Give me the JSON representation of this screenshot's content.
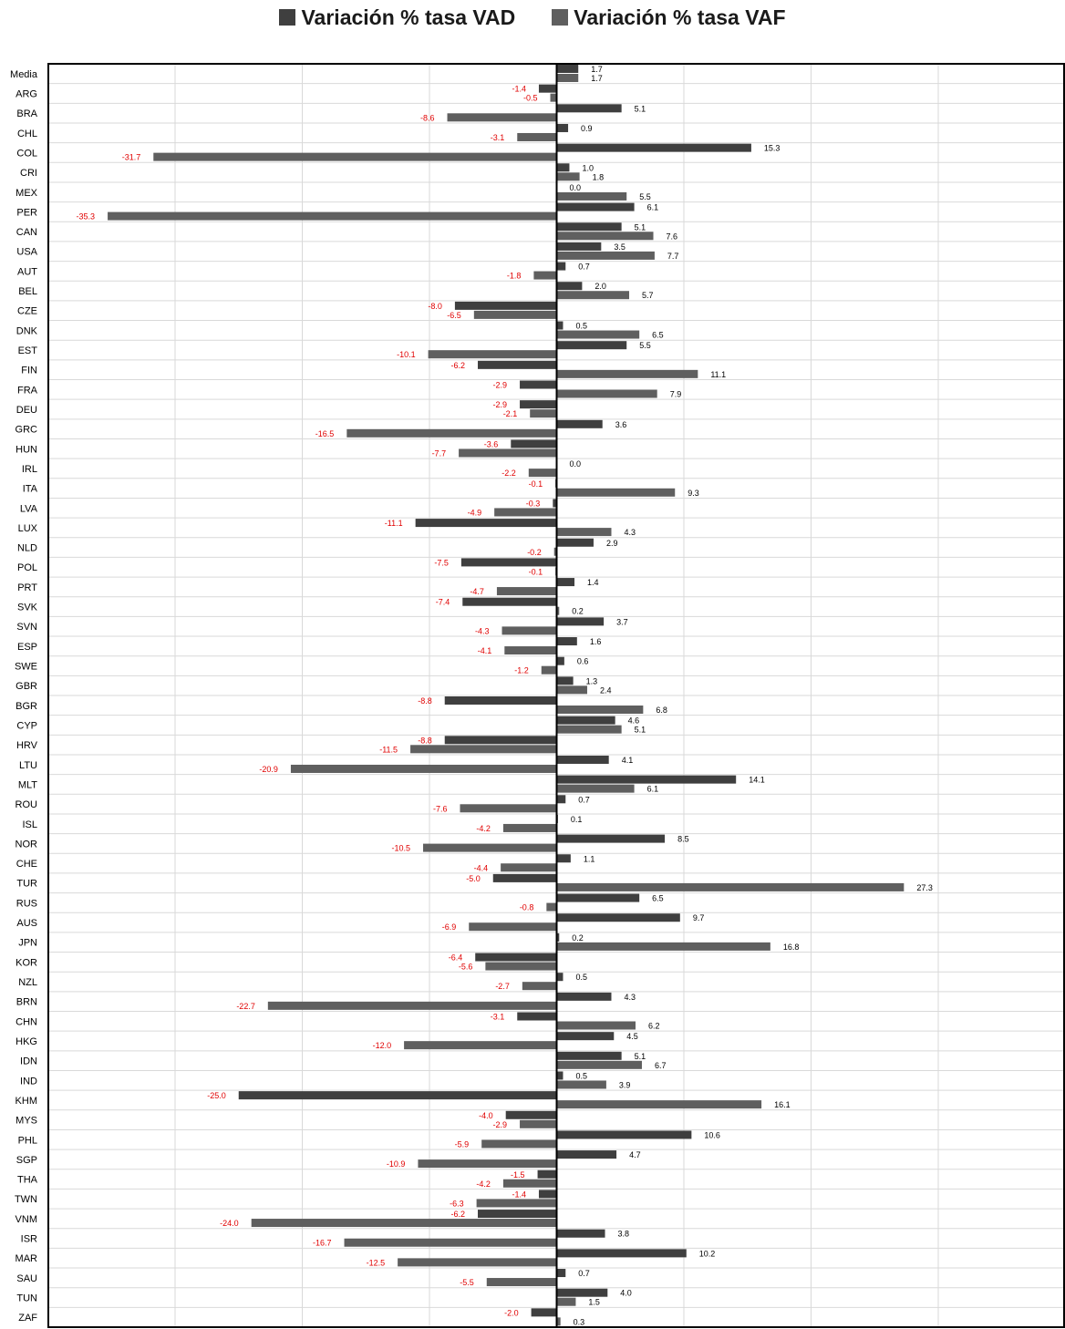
{
  "chart_data": {
    "type": "bar",
    "orientation": "horizontal",
    "legend_position": "top-center",
    "grid": true,
    "xlim": [
      -40,
      40
    ],
    "colors": {
      "VAD": "#3f3f3f",
      "VAF": "#5f5f5f",
      "negative_label": "#e00000",
      "positive_label": "#000000"
    },
    "categories": [
      "Media",
      "ARG",
      "BRA",
      "CHL",
      "COL",
      "CRI",
      "MEX",
      "PER",
      "CAN",
      "USA",
      "AUT",
      "BEL",
      "CZE",
      "DNK",
      "EST",
      "FIN",
      "FRA",
      "DEU",
      "GRC",
      "HUN",
      "IRL",
      "ITA",
      "LVA",
      "LUX",
      "NLD",
      "POL",
      "PRT",
      "SVK",
      "SVN",
      "ESP",
      "SWE",
      "GBR",
      "BGR",
      "CYP",
      "HRV",
      "LTU",
      "MLT",
      "ROU",
      "ISL",
      "NOR",
      "CHE",
      "TUR",
      "RUS",
      "AUS",
      "JPN",
      "KOR",
      "NZL",
      "BRN",
      "CHN",
      "HKG",
      "IDN",
      "IND",
      "KHM",
      "MYS",
      "PHL",
      "SGP",
      "THA",
      "TWN",
      "VNM",
      "ISR",
      "MAR",
      "SAU",
      "TUN",
      "ZAF"
    ],
    "series": [
      {
        "name": "Variación % tasa VAD",
        "values": [
          1.7,
          -1.4,
          5.1,
          0.9,
          15.3,
          1.0,
          0.0,
          6.1,
          5.1,
          3.5,
          0.7,
          2.0,
          -8.0,
          0.5,
          5.5,
          -6.2,
          -2.9,
          -2.9,
          3.6,
          -3.6,
          0.0,
          -0.1,
          -0.3,
          -11.1,
          2.9,
          -7.5,
          1.4,
          -7.4,
          3.7,
          1.6,
          0.6,
          1.3,
          -8.8,
          4.6,
          -8.8,
          4.1,
          14.1,
          0.7,
          0.1,
          8.5,
          1.1,
          -5.0,
          6.5,
          9.7,
          0.2,
          -6.4,
          0.5,
          4.3,
          -3.1,
          4.5,
          5.1,
          0.5,
          -25.0,
          -4.0,
          10.6,
          4.7,
          -1.5,
          -1.4,
          -6.2,
          3.8,
          10.2,
          0.7,
          4.0,
          -2.0
        ]
      },
      {
        "name": "Variación % tasa VAF",
        "values": [
          1.7,
          -0.5,
          -8.6,
          -3.1,
          -31.7,
          1.8,
          5.5,
          -35.3,
          7.6,
          7.7,
          -1.8,
          5.7,
          -6.5,
          6.5,
          -10.1,
          11.1,
          7.9,
          -2.1,
          -16.5,
          -7.7,
          -2.2,
          9.3,
          -4.9,
          4.3,
          -0.2,
          -0.1,
          -4.7,
          0.2,
          -4.3,
          -4.1,
          -1.2,
          2.4,
          6.8,
          5.1,
          -11.5,
          -20.9,
          6.1,
          -7.6,
          -4.2,
          -10.5,
          -4.4,
          27.3,
          -0.8,
          -6.9,
          16.8,
          -5.6,
          -2.7,
          -22.7,
          6.2,
          -12.0,
          6.7,
          3.9,
          16.1,
          -2.9,
          -5.9,
          -10.9,
          -4.2,
          -6.3,
          -24.0,
          -16.7,
          -12.5,
          -5.5,
          1.5,
          0.3
        ]
      }
    ]
  }
}
